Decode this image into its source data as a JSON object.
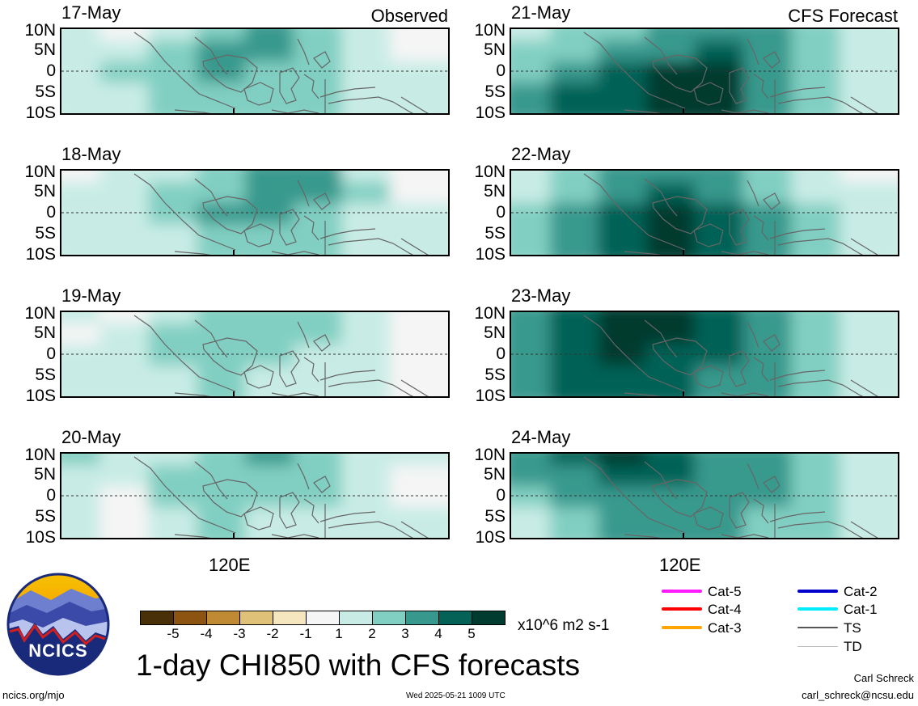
{
  "headers": {
    "left": "Observed",
    "right": "CFS Forecast"
  },
  "lat_ticks": [
    "10N",
    "5N",
    "0",
    "5S",
    "10S"
  ],
  "lon_label": "120E",
  "observed": [
    {
      "date": "17-May",
      "cells": [
        [
          1,
          0,
          1,
          2,
          3,
          2,
          1,
          0
        ],
        [
          1,
          1,
          2,
          3,
          3,
          2,
          1,
          0
        ],
        [
          1,
          2,
          2,
          3,
          2,
          2,
          1,
          1
        ],
        [
          1,
          1,
          2,
          2,
          2,
          2,
          1,
          1
        ]
      ]
    },
    {
      "date": "18-May",
      "cells": [
        [
          0,
          1,
          1,
          2,
          3,
          3,
          1,
          0
        ],
        [
          1,
          1,
          2,
          2,
          3,
          3,
          2,
          0
        ],
        [
          1,
          1,
          2,
          3,
          3,
          2,
          1,
          1
        ],
        [
          1,
          1,
          1,
          2,
          2,
          2,
          1,
          1
        ]
      ]
    },
    {
      "date": "19-May",
      "cells": [
        [
          1,
          0,
          1,
          2,
          2,
          2,
          1,
          0
        ],
        [
          0,
          1,
          2,
          2,
          2,
          2,
          1,
          0
        ],
        [
          1,
          1,
          2,
          2,
          2,
          1,
          1,
          0
        ],
        [
          1,
          1,
          1,
          2,
          1,
          1,
          1,
          0
        ]
      ]
    },
    {
      "date": "20-May",
      "cells": [
        [
          2,
          1,
          1,
          2,
          3,
          2,
          1,
          1
        ],
        [
          1,
          1,
          2,
          2,
          2,
          2,
          1,
          0
        ],
        [
          1,
          0,
          2,
          2,
          2,
          2,
          1,
          0
        ],
        [
          1,
          0,
          1,
          2,
          1,
          1,
          1,
          1
        ]
      ]
    }
  ],
  "forecast": [
    {
      "date": "21-May",
      "cells": [
        [
          1,
          2,
          2,
          3,
          3,
          3,
          2,
          1
        ],
        [
          2,
          2,
          3,
          3,
          4,
          3,
          2,
          1
        ],
        [
          2,
          3,
          4,
          5,
          5,
          3,
          2,
          1
        ],
        [
          3,
          4,
          4,
          5,
          5,
          3,
          2,
          1
        ]
      ]
    },
    {
      "date": "22-May",
      "cells": [
        [
          1,
          2,
          3,
          3,
          3,
          2,
          1,
          0
        ],
        [
          1,
          2,
          3,
          4,
          3,
          2,
          1,
          1
        ],
        [
          2,
          3,
          4,
          5,
          4,
          3,
          2,
          1
        ],
        [
          2,
          3,
          4,
          5,
          4,
          3,
          2,
          1
        ]
      ]
    },
    {
      "date": "23-May",
      "cells": [
        [
          3,
          4,
          5,
          5,
          4,
          3,
          2,
          1
        ],
        [
          3,
          4,
          5,
          5,
          4,
          3,
          2,
          1
        ],
        [
          3,
          4,
          5,
          4,
          4,
          3,
          2,
          1
        ],
        [
          3,
          4,
          4,
          4,
          3,
          3,
          2,
          1
        ]
      ]
    },
    {
      "date": "24-May",
      "cells": [
        [
          3,
          4,
          5,
          4,
          3,
          3,
          2,
          1
        ],
        [
          3,
          3,
          4,
          4,
          3,
          3,
          2,
          1
        ],
        [
          2,
          3,
          3,
          3,
          3,
          3,
          2,
          1
        ],
        [
          1,
          2,
          3,
          3,
          3,
          2,
          2,
          1
        ]
      ]
    }
  ],
  "colorbar": {
    "colors": [
      "#4a3008",
      "#8c5311",
      "#c08a35",
      "#dfc178",
      "#f5e6bf",
      "#f5f5f5",
      "#c8ece5",
      "#81cfc2",
      "#37998d",
      "#046257",
      "#013b2f"
    ],
    "labels": [
      "-5",
      "-4",
      "-3",
      "-2",
      "-1",
      "1",
      "2",
      "3",
      "4",
      "5"
    ],
    "units": "x10^6 m2 s-1"
  },
  "shade_colors": [
    "#f5f5f5",
    "#c8ece5",
    "#81cfc2",
    "#37998d",
    "#046257",
    "#013b2f"
  ],
  "storm_legend": [
    {
      "label": "Cat-5",
      "color": "#ff1aff"
    },
    {
      "label": "Cat-4",
      "color": "#ff0000"
    },
    {
      "label": "Cat-3",
      "color": "#ffa500"
    },
    {
      "label": "Cat-2",
      "color": "#0000cc"
    },
    {
      "label": "Cat-1",
      "color": "#00eeff"
    },
    {
      "label": "TS",
      "color": "#555555"
    },
    {
      "label": "TD",
      "color": "#bbbbbb"
    }
  ],
  "logo_text": "NCICS",
  "main_title": "1-day CHI850 with CFS forecasts",
  "footer": {
    "site": "ncics.org/mjo",
    "timestamp": "Wed 2025-05-21 1009 UTC",
    "author": "Carl Schreck",
    "email": "carl_schreck@ncsu.edu"
  }
}
